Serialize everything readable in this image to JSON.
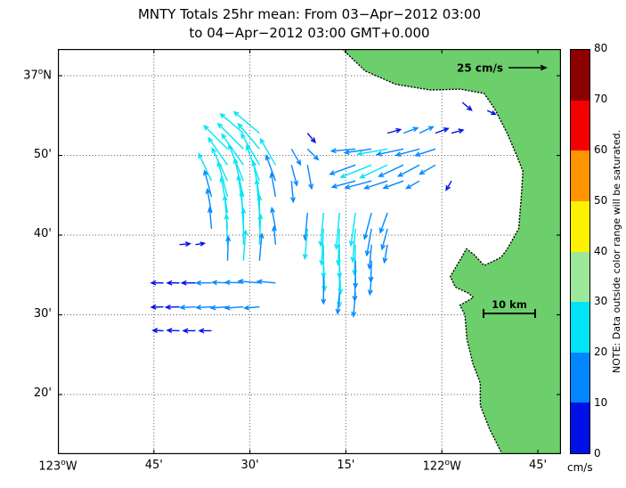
{
  "title": {
    "line1": "MNTY Totals 25hr mean: From 03−Apr−2012 03:00",
    "line2": "to 04−Apr−2012 03:00 GMT+0.000"
  },
  "axes": {
    "lon_range": [
      -123.0,
      -121.6898
    ],
    "lat_range": [
      36.2086,
      37.0559
    ],
    "x_ticks": [
      {
        "lon": -123.0,
        "label": "123°W"
      },
      {
        "lon": -122.75,
        "label": "45'"
      },
      {
        "lon": -122.5,
        "label": "30'"
      },
      {
        "lon": -122.25,
        "label": "15'"
      },
      {
        "lon": -122.0,
        "label": "122°W"
      },
      {
        "lon": -121.75,
        "label": "45'"
      }
    ],
    "y_ticks": [
      {
        "lat": 37.0,
        "label": "37°N"
      },
      {
        "lat": 36.8333,
        "label": "50'"
      },
      {
        "lat": 36.6667,
        "label": "40'"
      },
      {
        "lat": 36.5,
        "label": "30'"
      },
      {
        "lat": 36.3333,
        "label": "20'"
      }
    ]
  },
  "colorbar": {
    "units": "cm/s",
    "note": "NOTE: Data outside color range will be saturated.",
    "ticks": [
      0,
      10,
      20,
      30,
      40,
      50,
      60,
      70,
      80
    ],
    "bands": [
      {
        "min": 0,
        "max": 10,
        "color": "#0010E6"
      },
      {
        "min": 10,
        "max": 20,
        "color": "#0087FF"
      },
      {
        "min": 20,
        "max": 30,
        "color": "#00E4F5"
      },
      {
        "min": 30,
        "max": 40,
        "color": "#9BE89B"
      },
      {
        "min": 40,
        "max": 50,
        "color": "#FFF200"
      },
      {
        "min": 50,
        "max": 60,
        "color": "#FF9400"
      },
      {
        "min": 60,
        "max": 70,
        "color": "#F50000"
      },
      {
        "min": 70,
        "max": 80,
        "color": "#8C0000"
      }
    ]
  },
  "annotations": {
    "reference_arrow": {
      "label": "25 cm/s",
      "speed_cm_s": 25
    },
    "scale_bar": {
      "label": "10 km",
      "length_km": 10
    }
  },
  "map": {
    "land_color": "#6CCF6C",
    "coast_color": "#000000",
    "grid_color": "#555555"
  },
  "chart_data": {
    "type": "quiver_map",
    "title": "MNTY Totals 25hr mean: From 03−Apr−2012 03:00 to 04−Apr−2012 03:00 GMT+0.000",
    "units": "cm/s",
    "speed_range_shown": [
      0,
      80
    ],
    "vector_format": [
      "lon_deg",
      "lat_deg",
      "speed_cm_s",
      "dir_deg_ccw_from_east"
    ],
    "vectors": [
      [
        -122.5167,
        36.88,
        20,
        140
      ],
      [
        -122.475,
        36.88,
        22,
        140
      ],
      [
        -122.5583,
        36.8467,
        22,
        135
      ],
      [
        -122.5167,
        36.8467,
        24,
        135
      ],
      [
        -122.475,
        36.8467,
        22,
        130
      ],
      [
        -122.5583,
        36.8133,
        22,
        125
      ],
      [
        -122.5167,
        36.8133,
        25,
        125
      ],
      [
        -122.475,
        36.8133,
        24,
        120
      ],
      [
        -122.4333,
        36.8133,
        20,
        120
      ],
      [
        -122.6,
        36.78,
        20,
        115
      ],
      [
        -122.5583,
        36.78,
        24,
        115
      ],
      [
        -122.5167,
        36.78,
        26,
        112
      ],
      [
        -122.475,
        36.78,
        25,
        110
      ],
      [
        -122.4333,
        36.78,
        18,
        110
      ],
      [
        -122.6,
        36.7467,
        18,
        105
      ],
      [
        -122.5583,
        36.7467,
        24,
        105
      ],
      [
        -122.5167,
        36.7467,
        26,
        103
      ],
      [
        -122.475,
        36.7467,
        24,
        100
      ],
      [
        -122.4333,
        36.7467,
        16,
        100
      ],
      [
        -122.6,
        36.7133,
        16,
        100
      ],
      [
        -122.5583,
        36.7133,
        24,
        100
      ],
      [
        -122.5167,
        36.7133,
        25,
        98
      ],
      [
        -122.475,
        36.7133,
        22,
        95
      ],
      [
        -122.6,
        36.68,
        14,
        95
      ],
      [
        -122.5583,
        36.68,
        22,
        95
      ],
      [
        -122.5167,
        36.68,
        25,
        93
      ],
      [
        -122.475,
        36.68,
        22,
        90
      ],
      [
        -122.5583,
        36.6467,
        20,
        92
      ],
      [
        -122.5167,
        36.6467,
        24,
        90
      ],
      [
        -122.475,
        36.6467,
        20,
        88
      ],
      [
        -122.5583,
        36.6133,
        16,
        88
      ],
      [
        -122.5167,
        36.6133,
        20,
        86
      ],
      [
        -122.475,
        36.6133,
        18,
        85
      ],
      [
        -122.35,
        36.88,
        8,
        -50
      ],
      [
        -122.3917,
        36.8467,
        12,
        -60
      ],
      [
        -122.35,
        36.8467,
        10,
        -45
      ],
      [
        -122.3917,
        36.8133,
        14,
        -75
      ],
      [
        -122.35,
        36.8133,
        16,
        -80
      ],
      [
        -122.3917,
        36.78,
        14,
        -85
      ],
      [
        -122.1417,
        36.88,
        9,
        15
      ],
      [
        -122.1,
        36.88,
        10,
        20
      ],
      [
        -122.0583,
        36.88,
        10,
        25
      ],
      [
        -122.0167,
        36.88,
        9,
        20
      ],
      [
        -121.975,
        36.88,
        8,
        15
      ],
      [
        -121.9467,
        36.9441,
        8,
        -40
      ],
      [
        -121.8819,
        36.9273,
        6,
        -25
      ],
      [
        -122.225,
        36.8467,
        16,
        185
      ],
      [
        -122.1833,
        36.8467,
        18,
        188
      ],
      [
        -122.1417,
        36.8467,
        20,
        190
      ],
      [
        -122.1,
        36.8467,
        18,
        192
      ],
      [
        -122.0583,
        36.8467,
        16,
        195
      ],
      [
        -122.0167,
        36.8467,
        14,
        198
      ],
      [
        -122.225,
        36.8133,
        18,
        200
      ],
      [
        -122.1833,
        36.8133,
        22,
        202
      ],
      [
        -122.1417,
        36.8133,
        20,
        205
      ],
      [
        -122.1,
        36.8133,
        18,
        205
      ],
      [
        -122.0583,
        36.8133,
        16,
        208
      ],
      [
        -122.0167,
        36.8133,
        12,
        210
      ],
      [
        -122.225,
        36.78,
        16,
        195
      ],
      [
        -122.1833,
        36.78,
        18,
        195
      ],
      [
        -122.1417,
        36.78,
        16,
        198
      ],
      [
        -122.1,
        36.78,
        14,
        200
      ],
      [
        -122.0583,
        36.78,
        10,
        210
      ],
      [
        -121.975,
        36.78,
        7,
        240
      ],
      [
        -122.35,
        36.7133,
        18,
        -95
      ],
      [
        -122.3083,
        36.7133,
        22,
        -95
      ],
      [
        -122.2667,
        36.7133,
        24,
        -95
      ],
      [
        -122.225,
        36.7133,
        22,
        -98
      ],
      [
        -122.1833,
        36.7133,
        18,
        -105
      ],
      [
        -122.1417,
        36.7133,
        14,
        -110
      ],
      [
        -122.35,
        36.68,
        20,
        -95
      ],
      [
        -122.3083,
        36.68,
        24,
        -93
      ],
      [
        -122.2667,
        36.68,
        24,
        -92
      ],
      [
        -122.225,
        36.68,
        22,
        -95
      ],
      [
        -122.1833,
        36.68,
        18,
        -100
      ],
      [
        -122.1417,
        36.68,
        14,
        -105
      ],
      [
        -122.3083,
        36.6467,
        22,
        -90
      ],
      [
        -122.2667,
        36.6467,
        22,
        -90
      ],
      [
        -122.225,
        36.6467,
        20,
        -92
      ],
      [
        -122.1833,
        36.6467,
        16,
        -95
      ],
      [
        -122.1417,
        36.6467,
        12,
        -100
      ],
      [
        -122.3083,
        36.6133,
        20,
        -88
      ],
      [
        -122.2667,
        36.6133,
        22,
        -88
      ],
      [
        -122.225,
        36.6133,
        18,
        -90
      ],
      [
        -122.1833,
        36.6133,
        14,
        -92
      ],
      [
        -122.3083,
        36.58,
        18,
        -90
      ],
      [
        -122.2667,
        36.58,
        20,
        -90
      ],
      [
        -122.225,
        36.58,
        16,
        -92
      ],
      [
        -122.1833,
        36.58,
        12,
        -95
      ],
      [
        -122.2667,
        36.5467,
        14,
        -95
      ],
      [
        -122.225,
        36.5467,
        16,
        -95
      ],
      [
        -122.4333,
        36.68,
        14,
        100
      ],
      [
        -122.4333,
        36.6467,
        12,
        95
      ],
      [
        -122.725,
        36.5667,
        8,
        180
      ],
      [
        -122.6833,
        36.5667,
        8,
        180
      ],
      [
        -122.6417,
        36.5667,
        9,
        180
      ],
      [
        -122.6,
        36.5667,
        10,
        180
      ],
      [
        -122.5583,
        36.5667,
        10,
        178
      ],
      [
        -122.5167,
        36.5667,
        12,
        178
      ],
      [
        -122.475,
        36.5667,
        14,
        175
      ],
      [
        -122.4333,
        36.5667,
        12,
        175
      ],
      [
        -122.725,
        36.5167,
        8,
        182
      ],
      [
        -122.6833,
        36.5167,
        9,
        182
      ],
      [
        -122.6417,
        36.5167,
        10,
        183
      ],
      [
        -122.6,
        36.5167,
        10,
        183
      ],
      [
        -122.5583,
        36.5167,
        11,
        184
      ],
      [
        -122.5167,
        36.5167,
        12,
        184
      ],
      [
        -122.475,
        36.5167,
        10,
        185
      ],
      [
        -122.725,
        36.4667,
        7,
        178
      ],
      [
        -122.6833,
        36.4667,
        8,
        178
      ],
      [
        -122.6417,
        36.4667,
        8,
        180
      ],
      [
        -122.6,
        36.4667,
        8,
        180
      ],
      [
        -122.6833,
        36.6467,
        7,
        5
      ],
      [
        -122.6417,
        36.6467,
        6,
        8
      ]
    ],
    "coastline": [
      [
        -122.2593,
        37.0559
      ],
      [
        -122.2,
        37.01
      ],
      [
        -122.12,
        36.982
      ],
      [
        -122.03,
        36.97
      ],
      [
        -121.952,
        36.972
      ],
      [
        -121.89,
        36.963
      ],
      [
        -121.862,
        36.93
      ],
      [
        -121.83,
        36.88
      ],
      [
        -121.805,
        36.833
      ],
      [
        -121.789,
        36.8
      ],
      [
        -121.793,
        36.75
      ],
      [
        -121.8,
        36.68
      ],
      [
        -121.83,
        36.637
      ],
      [
        -121.846,
        36.62
      ],
      [
        -121.89,
        36.603
      ],
      [
        -121.915,
        36.625
      ],
      [
        -121.936,
        36.638
      ],
      [
        -121.945,
        36.625
      ],
      [
        -121.978,
        36.58
      ],
      [
        -121.965,
        36.558
      ],
      [
        -121.93,
        36.545
      ],
      [
        -121.918,
        36.536
      ],
      [
        -121.953,
        36.52
      ],
      [
        -121.94,
        36.5
      ],
      [
        -121.935,
        36.45
      ],
      [
        -121.92,
        36.4
      ],
      [
        -121.9,
        36.357
      ],
      [
        -121.9,
        36.31
      ],
      [
        -121.875,
        36.26
      ],
      [
        -121.843,
        36.2086
      ],
      [
        -121.6898,
        36.2086
      ],
      [
        -121.6898,
        37.0559
      ]
    ]
  }
}
